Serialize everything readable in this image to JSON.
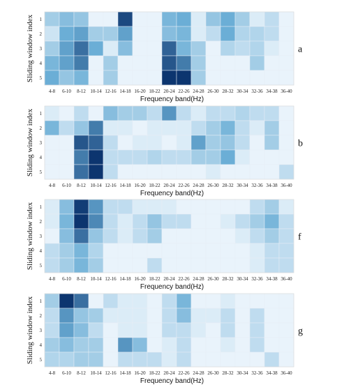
{
  "colors": {
    "low": "#f7fbff",
    "high": "#08306b"
  },
  "chart_data": [
    {
      "type": "heatmap",
      "panel_label": "a",
      "xlabel": "Frequency band(Hz)",
      "ylabel": "Sliding window index",
      "x_categories": [
        "4-8",
        "6-10",
        "8-12",
        "10-14",
        "12-16",
        "14-18",
        "16-20",
        "18-22",
        "20-24",
        "22-26",
        "24-28",
        "26-30",
        "28-32",
        "30-34",
        "32-36",
        "34-38",
        "36-40"
      ],
      "y_categories": [
        "1",
        "2",
        "3",
        "4",
        "5"
      ],
      "values": [
        [
          0.3,
          0.4,
          0.35,
          0.05,
          0.05,
          0.9,
          0.05,
          0.05,
          0.45,
          0.5,
          0.1,
          0.35,
          0.5,
          0.3,
          0.1,
          0.2,
          0.05
        ],
        [
          0.15,
          0.5,
          0.55,
          0.3,
          0.3,
          0.55,
          0.05,
          0.05,
          0.4,
          0.45,
          0.1,
          0.2,
          0.5,
          0.25,
          0.25,
          0.2,
          0.05
        ],
        [
          0.3,
          0.55,
          0.75,
          0.5,
          0.1,
          0.4,
          0.05,
          0.05,
          0.8,
          0.45,
          0.3,
          0.05,
          0.25,
          0.2,
          0.25,
          0.1,
          0.05
        ],
        [
          0.45,
          0.55,
          0.7,
          0.05,
          0.3,
          0.05,
          0.05,
          0.05,
          0.85,
          0.7,
          0.3,
          0.05,
          0.05,
          0.05,
          0.3,
          0.05,
          0.05
        ],
        [
          0.5,
          0.35,
          0.45,
          0.05,
          0.3,
          0.05,
          0.05,
          0.05,
          0.98,
          0.98,
          0.3,
          0.05,
          0.05,
          0.05,
          0.05,
          0.05,
          0.05
        ]
      ]
    },
    {
      "type": "heatmap",
      "panel_label": "b",
      "xlabel": "Frequency band(Hz)",
      "ylabel": "Sliding window index",
      "x_categories": [
        "4-8",
        "6-10",
        "8-12",
        "10-14",
        "12-16",
        "14-18",
        "16-20",
        "18-22",
        "20-24",
        "22-26",
        "24-28",
        "26-30",
        "28-32",
        "30-34",
        "32-36",
        "34-38",
        "36-40"
      ],
      "y_categories": [
        "1",
        "2",
        "3",
        "4",
        "5"
      ],
      "values": [
        [
          0.1,
          0.05,
          0.2,
          0.05,
          0.4,
          0.3,
          0.3,
          0.2,
          0.6,
          0.2,
          0.1,
          0.2,
          0.2,
          0.25,
          0.2,
          0.2,
          0.05
        ],
        [
          0.45,
          0.2,
          0.35,
          0.7,
          0.1,
          0.1,
          0.05,
          0.1,
          0.1,
          0.1,
          0.2,
          0.3,
          0.45,
          0.2,
          0.1,
          0.3,
          0.05
        ],
        [
          0.05,
          0.05,
          0.85,
          0.8,
          0.2,
          0.05,
          0.1,
          0.1,
          0.05,
          0.1,
          0.55,
          0.3,
          0.35,
          0.2,
          0.05,
          0.3,
          0.05
        ],
        [
          0.05,
          0.05,
          0.7,
          0.98,
          0.2,
          0.2,
          0.2,
          0.25,
          0.2,
          0.2,
          0.3,
          0.3,
          0.5,
          0.1,
          0.05,
          0.05,
          0.05
        ],
        [
          0.05,
          0.05,
          0.75,
          0.98,
          0.2,
          0.05,
          0.05,
          0.05,
          0.05,
          0.05,
          0.05,
          0.1,
          0.05,
          0.05,
          0.05,
          0.05,
          0.2
        ]
      ]
    },
    {
      "type": "heatmap",
      "panel_label": "f",
      "xlabel": "Frequency band(Hz)",
      "ylabel": "Sliding window index",
      "x_categories": [
        "4-8",
        "6-10",
        "8-12",
        "10-14",
        "12-16",
        "14-18",
        "16-20",
        "18-22",
        "20-24",
        "22-26",
        "24-28",
        "26-30",
        "28-32",
        "30-34",
        "32-36",
        "34-38",
        "36-40"
      ],
      "y_categories": [
        "1",
        "2",
        "3",
        "4",
        "5"
      ],
      "values": [
        [
          0.1,
          0.4,
          0.95,
          0.6,
          0.2,
          0.2,
          0.1,
          0.1,
          0.1,
          0.05,
          0.05,
          0.05,
          0.05,
          0.05,
          0.2,
          0.3,
          0.1
        ],
        [
          0.1,
          0.45,
          0.98,
          0.65,
          0.2,
          0.1,
          0.2,
          0.35,
          0.2,
          0.2,
          0.05,
          0.05,
          0.1,
          0.2,
          0.3,
          0.45,
          0.2
        ],
        [
          0.05,
          0.4,
          0.75,
          0.35,
          0.2,
          0.1,
          0.2,
          0.3,
          0.05,
          0.05,
          0.05,
          0.05,
          0.05,
          0.1,
          0.2,
          0.3,
          0.2
        ],
        [
          0.2,
          0.3,
          0.45,
          0.25,
          0.05,
          0.05,
          0.05,
          0.05,
          0.05,
          0.05,
          0.05,
          0.05,
          0.05,
          0.05,
          0.1,
          0.2,
          0.2
        ],
        [
          0.2,
          0.3,
          0.45,
          0.3,
          0.05,
          0.05,
          0.05,
          0.2,
          0.05,
          0.05,
          0.05,
          0.05,
          0.05,
          0.05,
          0.1,
          0.2,
          0.2
        ]
      ]
    },
    {
      "type": "heatmap",
      "panel_label": "g",
      "xlabel": "Frequency band(Hz)",
      "ylabel": "Sliding window index",
      "x_categories": [
        "4-8",
        "6-10",
        "8-12",
        "10-14",
        "12-16",
        "14-18",
        "16-20",
        "18-22",
        "20-24",
        "22-26",
        "24-28",
        "26-30",
        "28-32",
        "30-34",
        "32-36",
        "34-38",
        "36-40"
      ],
      "y_categories": [
        "1",
        "2",
        "3",
        "4",
        "5"
      ],
      "values": [
        [
          0.3,
          0.98,
          0.75,
          0.05,
          0.2,
          0.1,
          0.1,
          0.05,
          0.2,
          0.45,
          0.05,
          0.05,
          0.1,
          0.05,
          0.05,
          0.05,
          0.05
        ],
        [
          0.2,
          0.6,
          0.35,
          0.3,
          0.1,
          0.1,
          0.1,
          0.05,
          0.2,
          0.4,
          0.1,
          0.1,
          0.2,
          0.05,
          0.2,
          0.05,
          0.05
        ],
        [
          0.2,
          0.55,
          0.4,
          0.2,
          0.05,
          0.1,
          0.1,
          0.05,
          0.2,
          0.2,
          0.1,
          0.05,
          0.2,
          0.05,
          0.2,
          0.05,
          0.05
        ],
        [
          0.3,
          0.4,
          0.3,
          0.3,
          0.05,
          0.6,
          0.4,
          0.05,
          0.1,
          0.2,
          0.05,
          0.05,
          0.1,
          0.05,
          0.2,
          0.05,
          0.05
        ],
        [
          0.25,
          0.25,
          0.3,
          0.3,
          0.05,
          0.2,
          0.2,
          0.2,
          0.1,
          0.2,
          0.05,
          0.05,
          0.05,
          0.05,
          0.05,
          0.2,
          0.05
        ]
      ]
    }
  ]
}
